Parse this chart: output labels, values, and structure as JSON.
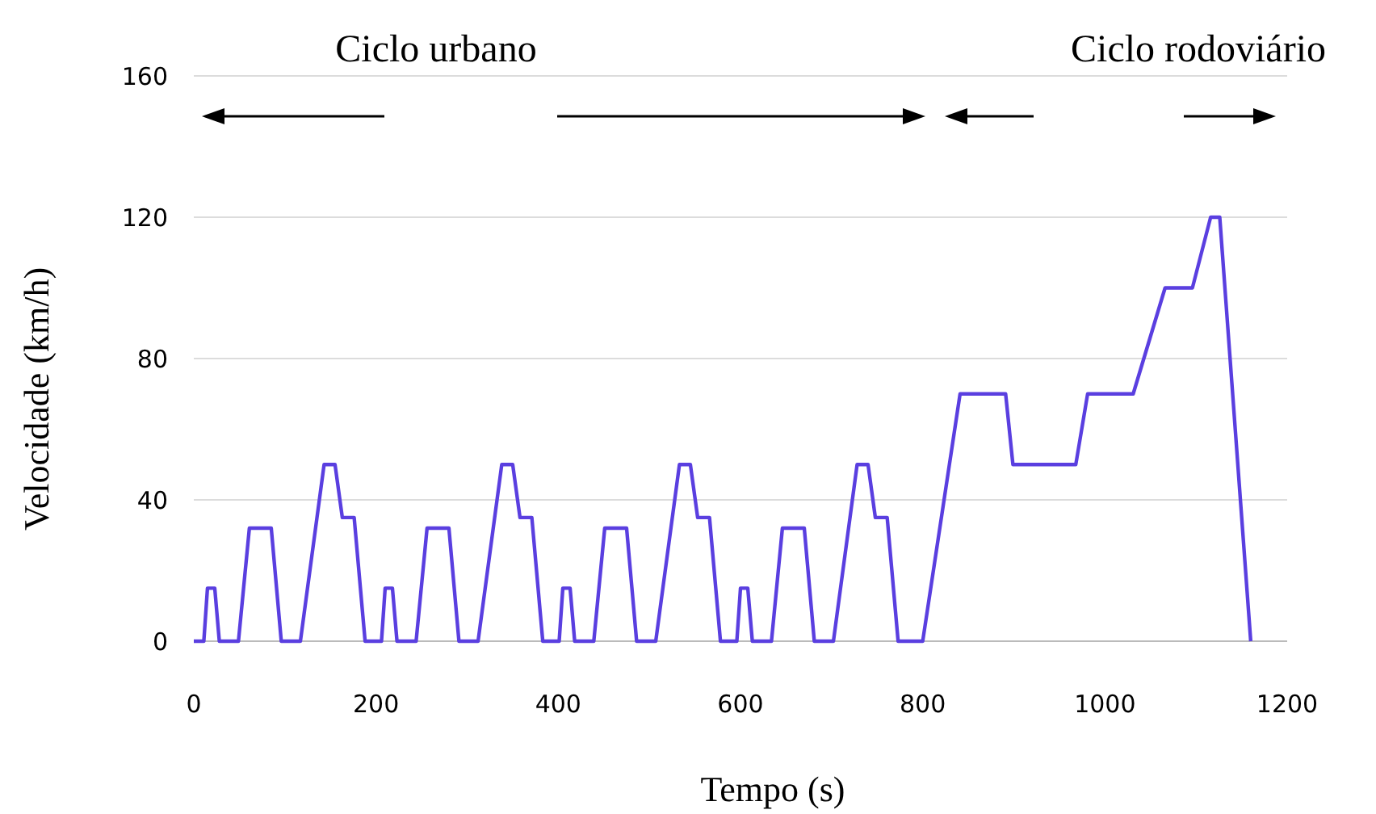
{
  "chart_data": {
    "type": "line",
    "xlabel": "Tempo (s)",
    "ylabel": "Velocidade (km/h)",
    "annotations": [
      "Ciclo urbano",
      "Ciclo rodoviário"
    ],
    "xlim": [
      0,
      1200
    ],
    "ylim": [
      0,
      160
    ],
    "xticks": [
      0,
      200,
      400,
      600,
      800,
      1000,
      1200
    ],
    "yticks": [
      0,
      40,
      80,
      120,
      160
    ],
    "grid": "y",
    "marker": "none",
    "line_style": "solid",
    "series": [
      {
        "color": "#5a3fe0",
        "x": [
          0,
          11,
          15,
          23,
          28,
          49,
          61,
          85,
          96,
          117,
          143,
          155,
          163,
          176,
          188,
          195,
          206,
          210,
          218,
          223,
          244,
          256,
          280,
          291,
          312,
          338,
          350,
          358,
          371,
          383,
          390,
          401,
          405,
          413,
          418,
          439,
          451,
          475,
          486,
          507,
          533,
          545,
          553,
          566,
          578,
          585,
          596,
          600,
          608,
          613,
          634,
          646,
          670,
          681,
          702,
          728,
          740,
          748,
          761,
          773,
          800,
          841,
          891,
          899,
          968,
          981,
          1031,
          1066,
          1096,
          1116,
          1126,
          1160
        ],
        "values": [
          0,
          0,
          15,
          15,
          0,
          0,
          32,
          32,
          0,
          0,
          50,
          50,
          35,
          35,
          0,
          0,
          0,
          15,
          15,
          0,
          0,
          32,
          32,
          0,
          0,
          50,
          50,
          35,
          35,
          0,
          0,
          0,
          15,
          15,
          0,
          0,
          32,
          32,
          0,
          0,
          50,
          50,
          35,
          35,
          0,
          0,
          0,
          15,
          15,
          0,
          0,
          32,
          32,
          0,
          0,
          50,
          50,
          35,
          35,
          0,
          0,
          70,
          70,
          50,
          50,
          70,
          70,
          100,
          100,
          120,
          120,
          0
        ]
      }
    ]
  }
}
